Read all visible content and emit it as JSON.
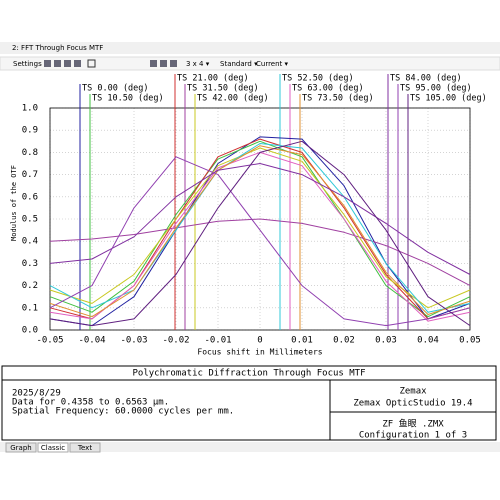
{
  "window": {
    "title": "2: FFT Through Focus MTF"
  },
  "toolbar": {
    "settings": "Settings",
    "layout": "3 x 4 ▾",
    "style": "Standard ▾",
    "config": "Current ▾"
  },
  "chart_data": {
    "type": "line",
    "title": "Polychromatic Diffraction Through Focus MTF",
    "x_label": "Focus shift in Millimeters",
    "y_label": "Modulus of the OTF",
    "x": [
      -0.05,
      -0.04,
      -0.03,
      -0.02,
      -0.01,
      0,
      0.01,
      0.02,
      0.03,
      0.04,
      0.05
    ],
    "xlim": [
      -0.05,
      0.05
    ],
    "xticks": [
      -0.05,
      -0.04,
      -0.03,
      -0.02,
      -0.01,
      0,
      0.01,
      0.02,
      0.03,
      0.04,
      0.05
    ],
    "ylim": [
      0,
      1
    ],
    "yticks": [
      {
        "value": 0,
        "label": "0.0"
      },
      0.1,
      0.2,
      0.3,
      0.4,
      0.5,
      0.6,
      0.7,
      0.8,
      0.9,
      {
        "value": 1,
        "label": "1.0"
      }
    ],
    "grid": true,
    "series": [
      {
        "name": "TS 0.00 (deg)",
        "color": "#2020a0",
        "values": [
          0.05,
          0.02,
          0.15,
          0.45,
          0.75,
          0.87,
          0.86,
          0.65,
          0.3,
          0.05,
          0.12
        ]
      },
      {
        "name": "TS 10.50 (deg)",
        "color": "#40c040",
        "values": [
          0.15,
          0.08,
          0.22,
          0.52,
          0.77,
          0.85,
          0.78,
          0.5,
          0.2,
          0.06,
          0.15
        ]
      },
      {
        "name": "TS 21.00 (deg)",
        "color": "#d03030",
        "values": [
          0.1,
          0.05,
          0.2,
          0.5,
          0.78,
          0.86,
          0.8,
          0.55,
          0.25,
          0.05,
          0.1
        ]
      },
      {
        "name": "TS 31.50 (deg)",
        "color": "#a040a0",
        "values": [
          0.4,
          0.41,
          0.43,
          0.46,
          0.49,
          0.5,
          0.48,
          0.44,
          0.38,
          0.3,
          0.2
        ]
      },
      {
        "name": "TS 42.00 (deg)",
        "color": "#c8c820",
        "values": [
          0.18,
          0.12,
          0.25,
          0.5,
          0.74,
          0.82,
          0.76,
          0.52,
          0.24,
          0.1,
          0.18
        ]
      },
      {
        "name": "TS 52.50 (deg)",
        "color": "#30c8d8",
        "values": [
          0.2,
          0.1,
          0.18,
          0.45,
          0.72,
          0.84,
          0.82,
          0.6,
          0.3,
          0.08,
          0.12
        ]
      },
      {
        "name": "TS 63.00 (deg)",
        "color": "#e060c0",
        "values": [
          0.08,
          0.05,
          0.2,
          0.48,
          0.73,
          0.8,
          0.74,
          0.5,
          0.22,
          0.04,
          0.08
        ]
      },
      {
        "name": "TS 73.50 (deg)",
        "color": "#e09030",
        "values": [
          0.12,
          0.06,
          0.18,
          0.46,
          0.72,
          0.83,
          0.79,
          0.56,
          0.26,
          0.07,
          0.13
        ]
      },
      {
        "name": "TS 84.00 (deg)",
        "color": "#8030a0",
        "values": [
          0.3,
          0.32,
          0.42,
          0.6,
          0.72,
          0.75,
          0.7,
          0.6,
          0.48,
          0.35,
          0.25
        ]
      },
      {
        "name": "TS 95.00 (deg)",
        "color": "#9040b0",
        "values": [
          0.1,
          0.2,
          0.55,
          0.78,
          0.7,
          0.45,
          0.2,
          0.05,
          0.02,
          0.05,
          0.1
        ]
      },
      {
        "name": "TS 105.00 (deg)",
        "color": "#602080",
        "values": [
          0.05,
          0.02,
          0.05,
          0.25,
          0.55,
          0.8,
          0.85,
          0.7,
          0.45,
          0.15,
          0.02
        ]
      }
    ]
  },
  "info": {
    "date": "2025/8/29",
    "data_line": "Data for 0.4358 to 0.6563 µm.",
    "freq_line": "Spatial Frequency: 60.0000 cycles per mm.",
    "brand": "Zemax",
    "product": "Zemax OpticStudio 19.4",
    "file": "ZF 鱼眼 .ZMX",
    "config": "Configuration 1 of 3"
  },
  "tabs": [
    "Graph",
    "Classic",
    "Text"
  ]
}
